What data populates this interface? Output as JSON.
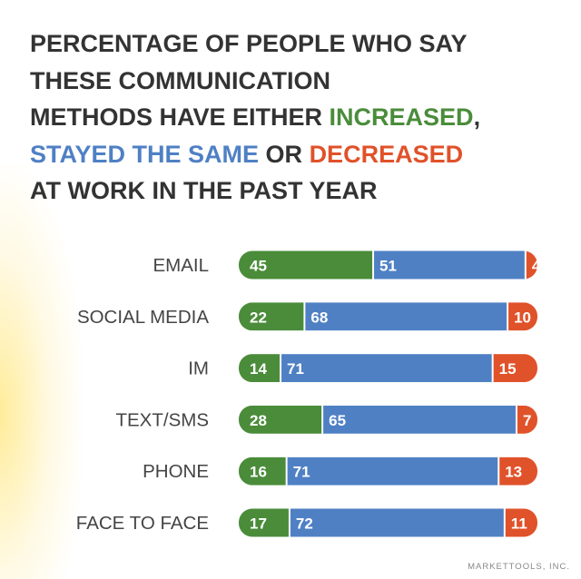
{
  "title": {
    "line1": "PERCENTAGE OF PEOPLE WHO SAY",
    "line2": "THESE COMMUNICATION",
    "line3a": "METHODS HAVE EITHER ",
    "increased": "INCREASED",
    "comma": ",",
    "stayed": "STAYED THE SAME",
    "or": " OR ",
    "decreased": "DECREASED",
    "line5": "AT WORK IN THE PAST YEAR"
  },
  "footer": "MARKETTOOLS, INC.",
  "colors": {
    "increased": "#4a8c3a",
    "same": "#4f80c4",
    "decreased": "#e0522a",
    "label": "#444444"
  },
  "chart_data": {
    "type": "bar",
    "orientation": "horizontal-stacked-100",
    "categories": [
      "EMAIL",
      "SOCIAL MEDIA",
      "IM",
      "TEXT/SMS",
      "PHONE",
      "FACE TO FACE"
    ],
    "series": [
      {
        "name": "Increased",
        "values": [
          45,
          22,
          14,
          28,
          16,
          17
        ]
      },
      {
        "name": "Stayed the same",
        "values": [
          51,
          68,
          71,
          65,
          71,
          72
        ]
      },
      {
        "name": "Decreased",
        "values": [
          4,
          10,
          15,
          7,
          13,
          11
        ]
      }
    ],
    "unit": "%"
  }
}
